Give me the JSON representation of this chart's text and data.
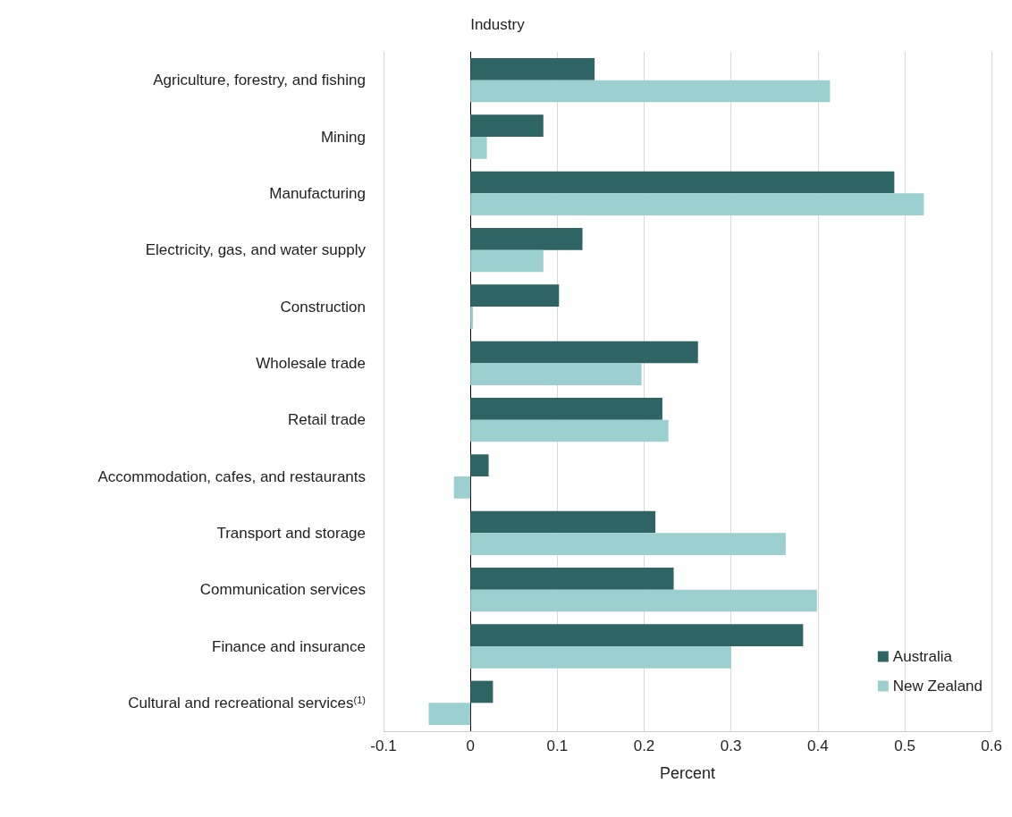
{
  "chart_data": {
    "type": "bar",
    "orientation": "horizontal",
    "xlabel": "Percent",
    "ylabel": "Industry",
    "categories": [
      "Agriculture, forestry, and fishing",
      "Mining",
      "Manufacturing",
      "Electricity, gas, and water supply",
      "Construction",
      "Wholesale trade",
      "Retail trade",
      "Accommodation, cafes, and restaurants",
      "Transport and storage",
      "Communication services",
      "Finance and insurance",
      "Cultural and recreational services$^{(1)}$"
    ],
    "series": [
      {
        "name": "Australia",
        "color": "#2f6464",
        "values": [
          0.143,
          0.084,
          0.488,
          0.129,
          0.102,
          0.262,
          0.221,
          0.021,
          0.213,
          0.234,
          0.383,
          0.026
        ]
      },
      {
        "name": "New Zealand",
        "color": "#9ccfcf",
        "values": [
          0.414,
          0.019,
          0.522,
          0.084,
          0.003,
          0.197,
          0.228,
          -0.019,
          0.363,
          0.399,
          0.3,
          -0.048
        ]
      }
    ],
    "xlim": [
      -0.1,
      0.6
    ],
    "xticks": [
      -0.1,
      0,
      0.1,
      0.2,
      0.3,
      0.4,
      0.5,
      0.6
    ],
    "grid": "x",
    "legend": "bottom right"
  }
}
